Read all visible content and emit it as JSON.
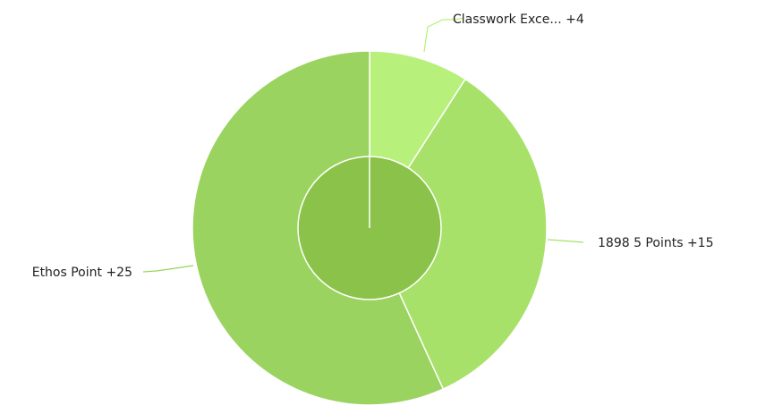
{
  "chart_data": {
    "type": "pie",
    "variant": "donut-with-center-disc",
    "slices": [
      {
        "label": "Classwork Exce... +4",
        "value": 4,
        "color": "#b7f07a"
      },
      {
        "label": "1898 5 Points +15",
        "value": 15,
        "color": "#a8e16a"
      },
      {
        "label": "Ethos Point +25",
        "value": 25,
        "color": "#9ad35f"
      }
    ],
    "center_color": "#8bc34a",
    "slice_border_color": "#ffffff",
    "background": "#ffffff"
  }
}
